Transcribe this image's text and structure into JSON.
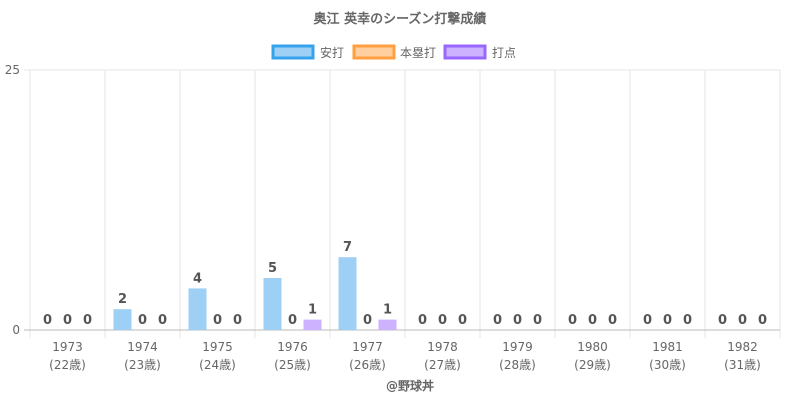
{
  "chart_data": {
    "type": "bar",
    "title": "奥江 英幸のシーズン打撃成績",
    "categories": [
      [
        "1973",
        "(22歳)"
      ],
      [
        "1974",
        "(23歳)"
      ],
      [
        "1975",
        "(24歳)"
      ],
      [
        "1976",
        "(25歳)"
      ],
      [
        "1977",
        "(26歳)"
      ],
      [
        "1978",
        "(27歳)"
      ],
      [
        "1979",
        "(28歳)"
      ],
      [
        "1980",
        "(29歳)"
      ],
      [
        "1981",
        "(30歳)"
      ],
      [
        "1982",
        "(31歳)"
      ]
    ],
    "series": [
      {
        "name": "安打",
        "fill": "#9ed0f5",
        "stroke": "#36a2eb",
        "values": [
          0,
          2,
          4,
          5,
          7,
          0,
          0,
          0,
          0,
          0
        ]
      },
      {
        "name": "本塁打",
        "fill": "#ffcf9f",
        "stroke": "#ff9f40",
        "values": [
          0,
          0,
          0,
          0,
          0,
          0,
          0,
          0,
          0,
          0
        ]
      },
      {
        "name": "打点",
        "fill": "#ccb2ff",
        "stroke": "#9966ff",
        "values": [
          0,
          0,
          0,
          1,
          1,
          0,
          0,
          0,
          0,
          0
        ]
      }
    ],
    "ylim": [
      0,
      25
    ],
    "yticks": [
      0,
      25
    ],
    "grid": true,
    "legend": "top",
    "xlabel": "",
    "ylabel": "",
    "watermark": "@野球丼"
  }
}
